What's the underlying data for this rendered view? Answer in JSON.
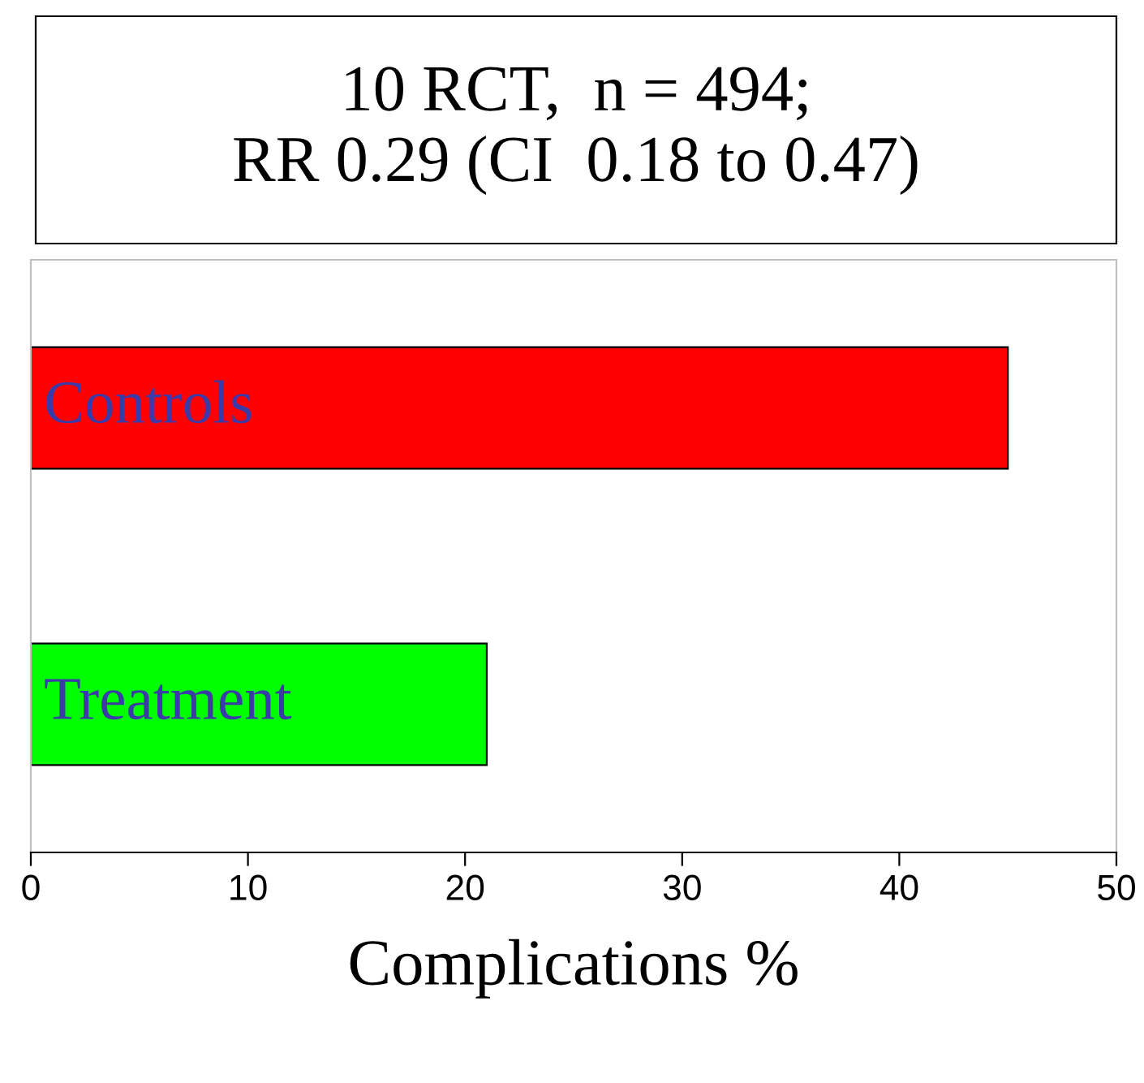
{
  "chart_data": {
    "type": "bar",
    "orientation": "horizontal",
    "title": "10 RCT,  n = 494;\nRR 0.29 (CI  0.18 to 0.47)",
    "categories": [
      "Controls",
      "Treatment"
    ],
    "values": [
      45,
      21
    ],
    "colors": [
      "#ff0000",
      "#00ff00"
    ],
    "xlabel": "Complications %",
    "xlim": [
      0,
      50
    ],
    "xticks": [
      0,
      10,
      20,
      30,
      40,
      50
    ],
    "tick_labels": "x",
    "grid": false,
    "legend": false
  }
}
